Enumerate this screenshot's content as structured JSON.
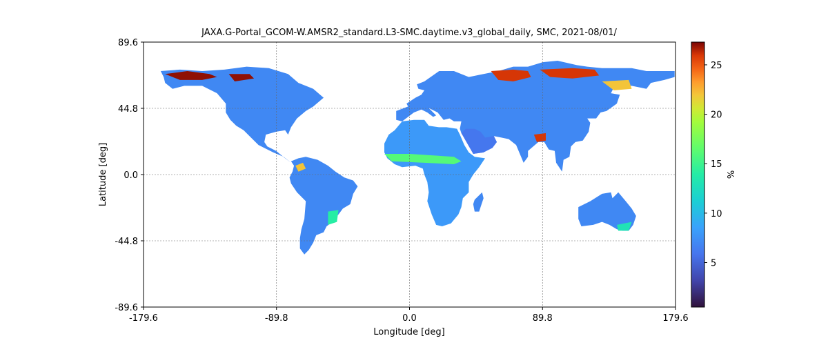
{
  "chart_data": {
    "type": "heatmap",
    "title": "JAXA.G-Portal_GCOM-W.AMSR2_standard.L3-SMC.daytime.v3_global_daily, SMC, 2021-08/01/",
    "xlabel": "Longitude [deg]",
    "ylabel": "Latitude [deg]",
    "xlim": [
      -179.6,
      179.6
    ],
    "ylim": [
      -89.6,
      89.6
    ],
    "xticks": [
      -179.6,
      -89.8,
      0.0,
      89.8,
      179.6
    ],
    "xtick_labels": [
      "-179.6",
      "-89.8",
      "0.0",
      "89.8",
      "179.6"
    ],
    "yticks": [
      -89.6,
      -44.8,
      0.0,
      44.8,
      89.6
    ],
    "ytick_labels": [
      "-89.6",
      "-44.8",
      "0.0",
      "44.8",
      "89.6"
    ],
    "grid": true,
    "colormap": "turbo",
    "colorbar": {
      "label": "%",
      "range": [
        0.5,
        27.3
      ],
      "ticks": [
        5,
        10,
        15,
        20,
        25
      ],
      "tick_labels": [
        "5",
        "10",
        "15",
        "20",
        "25"
      ]
    },
    "regions": [
      {
        "name": "North America",
        "value": 7,
        "polygon": [
          [
            -168,
            70
          ],
          [
            -155,
            71
          ],
          [
            -140,
            70
          ],
          [
            -125,
            71
          ],
          [
            -110,
            73
          ],
          [
            -95,
            72
          ],
          [
            -82,
            68
          ],
          [
            -75,
            62
          ],
          [
            -65,
            58
          ],
          [
            -58,
            52
          ],
          [
            -65,
            46
          ],
          [
            -70,
            43
          ],
          [
            -76,
            38
          ],
          [
            -80,
            32
          ],
          [
            -82,
            27
          ],
          [
            -84,
            30
          ],
          [
            -90,
            29
          ],
          [
            -97,
            27
          ],
          [
            -98,
            22
          ],
          [
            -96,
            19
          ],
          [
            -90,
            16
          ],
          [
            -84,
            11
          ],
          [
            -80,
            8
          ],
          [
            -85,
            12
          ],
          [
            -92,
            15
          ],
          [
            -102,
            20
          ],
          [
            -106,
            24
          ],
          [
            -112,
            30
          ],
          [
            -117,
            33
          ],
          [
            -121,
            37
          ],
          [
            -124,
            42
          ],
          [
            -124,
            48
          ],
          [
            -130,
            55
          ],
          [
            -140,
            60
          ],
          [
            -152,
            60
          ],
          [
            -160,
            58
          ],
          [
            -165,
            62
          ],
          [
            -166,
            66
          ]
        ]
      },
      {
        "name": "South America",
        "value": 7,
        "polygon": [
          [
            -80,
            9
          ],
          [
            -75,
            11
          ],
          [
            -70,
            12
          ],
          [
            -62,
            10
          ],
          [
            -55,
            6
          ],
          [
            -50,
            2
          ],
          [
            -44,
            -2
          ],
          [
            -38,
            -4
          ],
          [
            -35,
            -8
          ],
          [
            -38,
            -13
          ],
          [
            -40,
            -20
          ],
          [
            -45,
            -23
          ],
          [
            -48,
            -27
          ],
          [
            -52,
            -32
          ],
          [
            -56,
            -35
          ],
          [
            -58,
            -39
          ],
          [
            -63,
            -41
          ],
          [
            -65,
            -46
          ],
          [
            -68,
            -51
          ],
          [
            -71,
            -54
          ],
          [
            -74,
            -50
          ],
          [
            -74,
            -43
          ],
          [
            -73,
            -37
          ],
          [
            -71,
            -30
          ],
          [
            -70,
            -18
          ],
          [
            -76,
            -12
          ],
          [
            -80,
            -6
          ],
          [
            -81,
            -2
          ],
          [
            -79,
            2
          ],
          [
            -78,
            6
          ]
        ]
      },
      {
        "name": "Africa",
        "value": 8,
        "polygon": [
          [
            -17,
            21
          ],
          [
            -17,
            15
          ],
          [
            -15,
            11
          ],
          [
            -10,
            7
          ],
          [
            -5,
            5
          ],
          [
            4,
            6
          ],
          [
            9,
            4
          ],
          [
            10,
            0
          ],
          [
            12,
            -5
          ],
          [
            13,
            -12
          ],
          [
            12,
            -18
          ],
          [
            15,
            -27
          ],
          [
            18,
            -34
          ],
          [
            22,
            -35
          ],
          [
            28,
            -33
          ],
          [
            33,
            -27
          ],
          [
            35,
            -22
          ],
          [
            36,
            -16
          ],
          [
            40,
            -12
          ],
          [
            40,
            -5
          ],
          [
            43,
            0
          ],
          [
            47,
            5
          ],
          [
            51,
            11
          ],
          [
            44,
            12
          ],
          [
            40,
            15
          ],
          [
            37,
            20
          ],
          [
            34,
            27
          ],
          [
            32,
            31
          ],
          [
            25,
            32
          ],
          [
            20,
            32
          ],
          [
            13,
            33
          ],
          [
            10,
            37
          ],
          [
            3,
            37
          ],
          [
            -5,
            36
          ],
          [
            -10,
            30
          ],
          [
            -14,
            27
          ]
        ]
      },
      {
        "name": "Eurasia",
        "value": 7,
        "polygon": [
          [
            -9,
            43
          ],
          [
            -9,
            37
          ],
          [
            -5,
            36
          ],
          [
            3,
            42
          ],
          [
            8,
            44
          ],
          [
            12,
            42
          ],
          [
            16,
            39
          ],
          [
            18,
            40
          ],
          [
            13,
            45
          ],
          [
            19,
            42
          ],
          [
            23,
            37
          ],
          [
            27,
            38
          ],
          [
            30,
            36
          ],
          [
            35,
            36
          ],
          [
            34,
            31
          ],
          [
            35,
            28
          ],
          [
            40,
            22
          ],
          [
            43,
            14
          ],
          [
            50,
            15
          ],
          [
            56,
            22
          ],
          [
            57,
            26
          ],
          [
            62,
            25
          ],
          [
            67,
            24
          ],
          [
            72,
            20
          ],
          [
            77,
            8
          ],
          [
            80,
            12
          ],
          [
            80,
            16
          ],
          [
            87,
            22
          ],
          [
            91,
            22
          ],
          [
            94,
            17
          ],
          [
            98,
            16
          ],
          [
            99,
            8
          ],
          [
            103,
            2
          ],
          [
            104,
            10
          ],
          [
            108,
            12
          ],
          [
            109,
            19
          ],
          [
            112,
            22
          ],
          [
            117,
            23
          ],
          [
            121,
            29
          ],
          [
            122,
            35
          ],
          [
            120,
            38
          ],
          [
            126,
            38
          ],
          [
            129,
            42
          ],
          [
            133,
            43
          ],
          [
            140,
            48
          ],
          [
            142,
            54
          ],
          [
            136,
            55
          ],
          [
            138,
            59
          ],
          [
            150,
            60
          ],
          [
            160,
            58
          ],
          [
            163,
            62
          ],
          [
            172,
            64
          ],
          [
            179,
            66
          ],
          [
            179,
            70
          ],
          [
            170,
            70
          ],
          [
            160,
            70
          ],
          [
            150,
            72
          ],
          [
            140,
            72
          ],
          [
            130,
            72
          ],
          [
            120,
            73
          ],
          [
            113,
            74
          ],
          [
            100,
            77
          ],
          [
            90,
            76
          ],
          [
            80,
            73
          ],
          [
            70,
            73
          ],
          [
            60,
            70
          ],
          [
            50,
            68
          ],
          [
            40,
            66
          ],
          [
            30,
            70
          ],
          [
            20,
            70
          ],
          [
            10,
            63
          ],
          [
            5,
            61
          ],
          [
            6,
            58
          ],
          [
            10,
            57
          ],
          [
            8,
            54
          ],
          [
            4,
            52
          ],
          [
            1,
            50
          ],
          [
            -2,
            48
          ],
          [
            -1,
            46
          ]
        ]
      },
      {
        "name": "Arabia",
        "value": 6,
        "polygon": [
          [
            35,
            28
          ],
          [
            39,
            21
          ],
          [
            43,
            14
          ],
          [
            50,
            15
          ],
          [
            56,
            18
          ],
          [
            59,
            22
          ],
          [
            57,
            26
          ],
          [
            51,
            25
          ],
          [
            48,
            29
          ],
          [
            44,
            31
          ],
          [
            38,
            31
          ]
        ]
      },
      {
        "name": "Australia",
        "value": 7,
        "polygon": [
          [
            114,
            -22
          ],
          [
            122,
            -18
          ],
          [
            130,
            -13
          ],
          [
            136,
            -12
          ],
          [
            137,
            -16
          ],
          [
            141,
            -12
          ],
          [
            146,
            -18
          ],
          [
            150,
            -23
          ],
          [
            153,
            -28
          ],
          [
            151,
            -34
          ],
          [
            148,
            -38
          ],
          [
            144,
            -38
          ],
          [
            140,
            -37
          ],
          [
            135,
            -34
          ],
          [
            130,
            -32
          ],
          [
            124,
            -34
          ],
          [
            116,
            -35
          ],
          [
            114,
            -30
          ]
        ]
      },
      {
        "name": "Madagascar",
        "value": 7,
        "polygon": [
          [
            44,
            -25
          ],
          [
            43,
            -20
          ],
          [
            44,
            -17
          ],
          [
            47,
            -14
          ],
          [
            49,
            -12
          ],
          [
            50,
            -16
          ],
          [
            48,
            -22
          ],
          [
            47,
            -25
          ]
        ]
      },
      {
        "name": "Alaska wet",
        "value": 27,
        "polygon": [
          [
            -165,
            68
          ],
          [
            -150,
            70
          ],
          [
            -135,
            68
          ],
          [
            -130,
            66
          ],
          [
            -140,
            64
          ],
          [
            -155,
            64
          ]
        ]
      },
      {
        "name": "Canadian Arctic wet",
        "value": 27,
        "polygon": [
          [
            -122,
            68
          ],
          [
            -108,
            68
          ],
          [
            -105,
            65
          ],
          [
            -118,
            63
          ]
        ]
      },
      {
        "name": "West Siberia wet",
        "value": 26,
        "polygon": [
          [
            55,
            70
          ],
          [
            70,
            71
          ],
          [
            80,
            70
          ],
          [
            82,
            66
          ],
          [
            70,
            63
          ],
          [
            60,
            64
          ]
        ]
      },
      {
        "name": "Central Siberia wet",
        "value": 26,
        "polygon": [
          [
            88,
            71
          ],
          [
            110,
            72
          ],
          [
            125,
            71
          ],
          [
            128,
            67
          ],
          [
            110,
            65
          ],
          [
            95,
            66
          ]
        ]
      },
      {
        "name": "East Siberia wet",
        "value": 22,
        "polygon": [
          [
            130,
            63
          ],
          [
            148,
            64
          ],
          [
            150,
            58
          ],
          [
            138,
            57
          ]
        ]
      },
      {
        "name": "Bangladesh wet",
        "value": 26,
        "polygon": [
          [
            84,
            27
          ],
          [
            92,
            28
          ],
          [
            92,
            23
          ],
          [
            86,
            22
          ]
        ]
      },
      {
        "name": "Sahel wet",
        "value": 16,
        "polygon": [
          [
            -17,
            14
          ],
          [
            0,
            14
          ],
          [
            15,
            13
          ],
          [
            30,
            12
          ],
          [
            35,
            9
          ],
          [
            30,
            7
          ],
          [
            10,
            8
          ],
          [
            -12,
            9
          ]
        ]
      },
      {
        "name": "Brazil SE wet",
        "value": 14,
        "polygon": [
          [
            -55,
            -25
          ],
          [
            -48,
            -24
          ],
          [
            -49,
            -32
          ],
          [
            -55,
            -34
          ]
        ]
      },
      {
        "name": "Australia SE wet",
        "value": 13,
        "polygon": [
          [
            140,
            -34
          ],
          [
            150,
            -32
          ],
          [
            148,
            -38
          ],
          [
            141,
            -38
          ]
        ]
      },
      {
        "name": "Amazon top wet",
        "value": 22,
        "polygon": [
          [
            -77,
            6
          ],
          [
            -72,
            8
          ],
          [
            -70,
            4
          ],
          [
            -75,
            2
          ]
        ]
      }
    ]
  }
}
